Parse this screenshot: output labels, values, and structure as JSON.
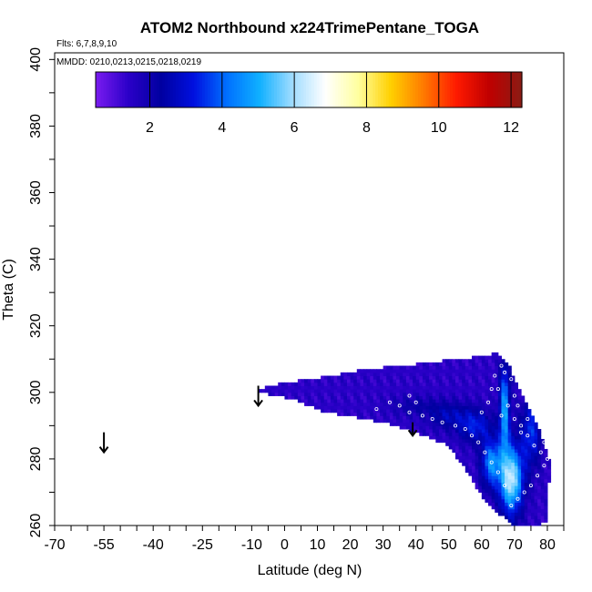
{
  "chart_data": {
    "type": "heatmap",
    "title": "ATOM2 Northbound x224TrimePentane_TOGA",
    "annotations": {
      "flights": "Flts: 6,7,8,9,10",
      "dates": "MMDD: 0210,0213,0215,0218,0219"
    },
    "xlabel": "Latitude (deg N)",
    "ylabel": "Theta (C)",
    "xlim": [
      -70,
      85
    ],
    "ylim": [
      260,
      402
    ],
    "x_ticks": [
      -70,
      -55,
      -40,
      -25,
      -10,
      0,
      10,
      20,
      30,
      40,
      50,
      60,
      70,
      80
    ],
    "y_ticks": [
      260,
      280,
      300,
      320,
      340,
      360,
      380,
      400
    ],
    "colorbar": {
      "range": [
        0.5,
        12.3
      ],
      "ticks": [
        2,
        4,
        6,
        8,
        10,
        12
      ],
      "colors": [
        "#7a1cf0",
        "#2b00c8",
        "#0000a0",
        "#0010e0",
        "#0070ff",
        "#10b0ff",
        "#a0dcff",
        "#ffffff",
        "#ffffa0",
        "#ffd000",
        "#ff7a00",
        "#ff1a00",
        "#c00000",
        "#8a1c14"
      ]
    },
    "field": {
      "color_scale": [
        "#7a1cf0",
        "#2b00c8",
        "#0000a0",
        "#0010e0",
        "#0070ff",
        "#10b0ff",
        "#a0dcff",
        "#ffffff"
      ],
      "value_max": 6,
      "outline": [
        [
          -8,
          301
        ],
        [
          0,
          303
        ],
        [
          15,
          305
        ],
        [
          25,
          307
        ],
        [
          35,
          308
        ],
        [
          45,
          309
        ],
        [
          52,
          310
        ],
        [
          62,
          311
        ],
        [
          65,
          312
        ],
        [
          68,
          309
        ],
        [
          71,
          302
        ],
        [
          74,
          296
        ],
        [
          77,
          290
        ],
        [
          80,
          282
        ],
        [
          81,
          278
        ],
        [
          80,
          268
        ],
        [
          80,
          261
        ],
        [
          76,
          260
        ],
        [
          70,
          260
        ],
        [
          62,
          266
        ],
        [
          55,
          277
        ],
        [
          50,
          284
        ],
        [
          45,
          286
        ],
        [
          40,
          288
        ],
        [
          30,
          291
        ],
        [
          20,
          293
        ],
        [
          12,
          294
        ],
        [
          3,
          298
        ],
        [
          -8,
          300
        ]
      ],
      "blobs": [
        {
          "x": 69,
          "y": 274,
          "value": 5.5,
          "sx": 3.5,
          "sy": 10
        },
        {
          "x": 67,
          "y": 295,
          "value": 4.2,
          "sx": 1.5,
          "sy": 13
        },
        {
          "x": 63,
          "y": 279,
          "value": 3.8,
          "sx": 3,
          "sy": 7
        },
        {
          "x": 75,
          "y": 288,
          "value": 2.8,
          "sx": 3,
          "sy": 10
        },
        {
          "x": 58,
          "y": 290,
          "value": 2.6,
          "sx": 5,
          "sy": 5
        },
        {
          "x": 50,
          "y": 293,
          "value": 2.0,
          "sx": 6,
          "sy": 4
        },
        {
          "x": 40,
          "y": 296,
          "value": 1.5,
          "sx": 8,
          "sy": 3
        }
      ],
      "base_value": 0.9
    },
    "sample_points": [
      [
        63,
        301
      ],
      [
        64,
        305
      ],
      [
        66,
        308
      ],
      [
        67,
        306
      ],
      [
        69,
        304
      ],
      [
        70,
        299
      ],
      [
        68,
        296
      ],
      [
        66,
        293
      ],
      [
        70,
        292
      ],
      [
        72,
        290
      ],
      [
        74,
        287
      ],
      [
        76,
        284
      ],
      [
        78,
        282
      ],
      [
        79,
        278
      ],
      [
        77,
        275
      ],
      [
        75,
        272
      ],
      [
        73,
        270
      ],
      [
        71,
        268
      ],
      [
        69,
        266
      ],
      [
        67,
        272
      ],
      [
        65,
        276
      ],
      [
        63,
        279
      ],
      [
        61,
        282
      ],
      [
        59,
        285
      ],
      [
        57,
        287
      ],
      [
        55,
        289
      ],
      [
        52,
        290
      ],
      [
        48,
        291
      ],
      [
        45,
        292
      ],
      [
        42,
        293
      ],
      [
        38,
        294
      ],
      [
        35,
        296
      ],
      [
        32,
        297
      ],
      [
        28,
        295
      ],
      [
        38,
        299
      ],
      [
        40,
        297
      ],
      [
        60,
        294
      ],
      [
        62,
        297
      ],
      [
        65,
        301
      ],
      [
        71,
        296
      ],
      [
        74,
        292
      ],
      [
        79,
        285
      ],
      [
        80,
        280
      ],
      [
        72,
        288
      ]
    ],
    "arrows": [
      [
        -55,
        288,
        282
      ],
      [
        -8,
        302,
        296
      ],
      [
        39,
        291,
        287
      ]
    ]
  }
}
